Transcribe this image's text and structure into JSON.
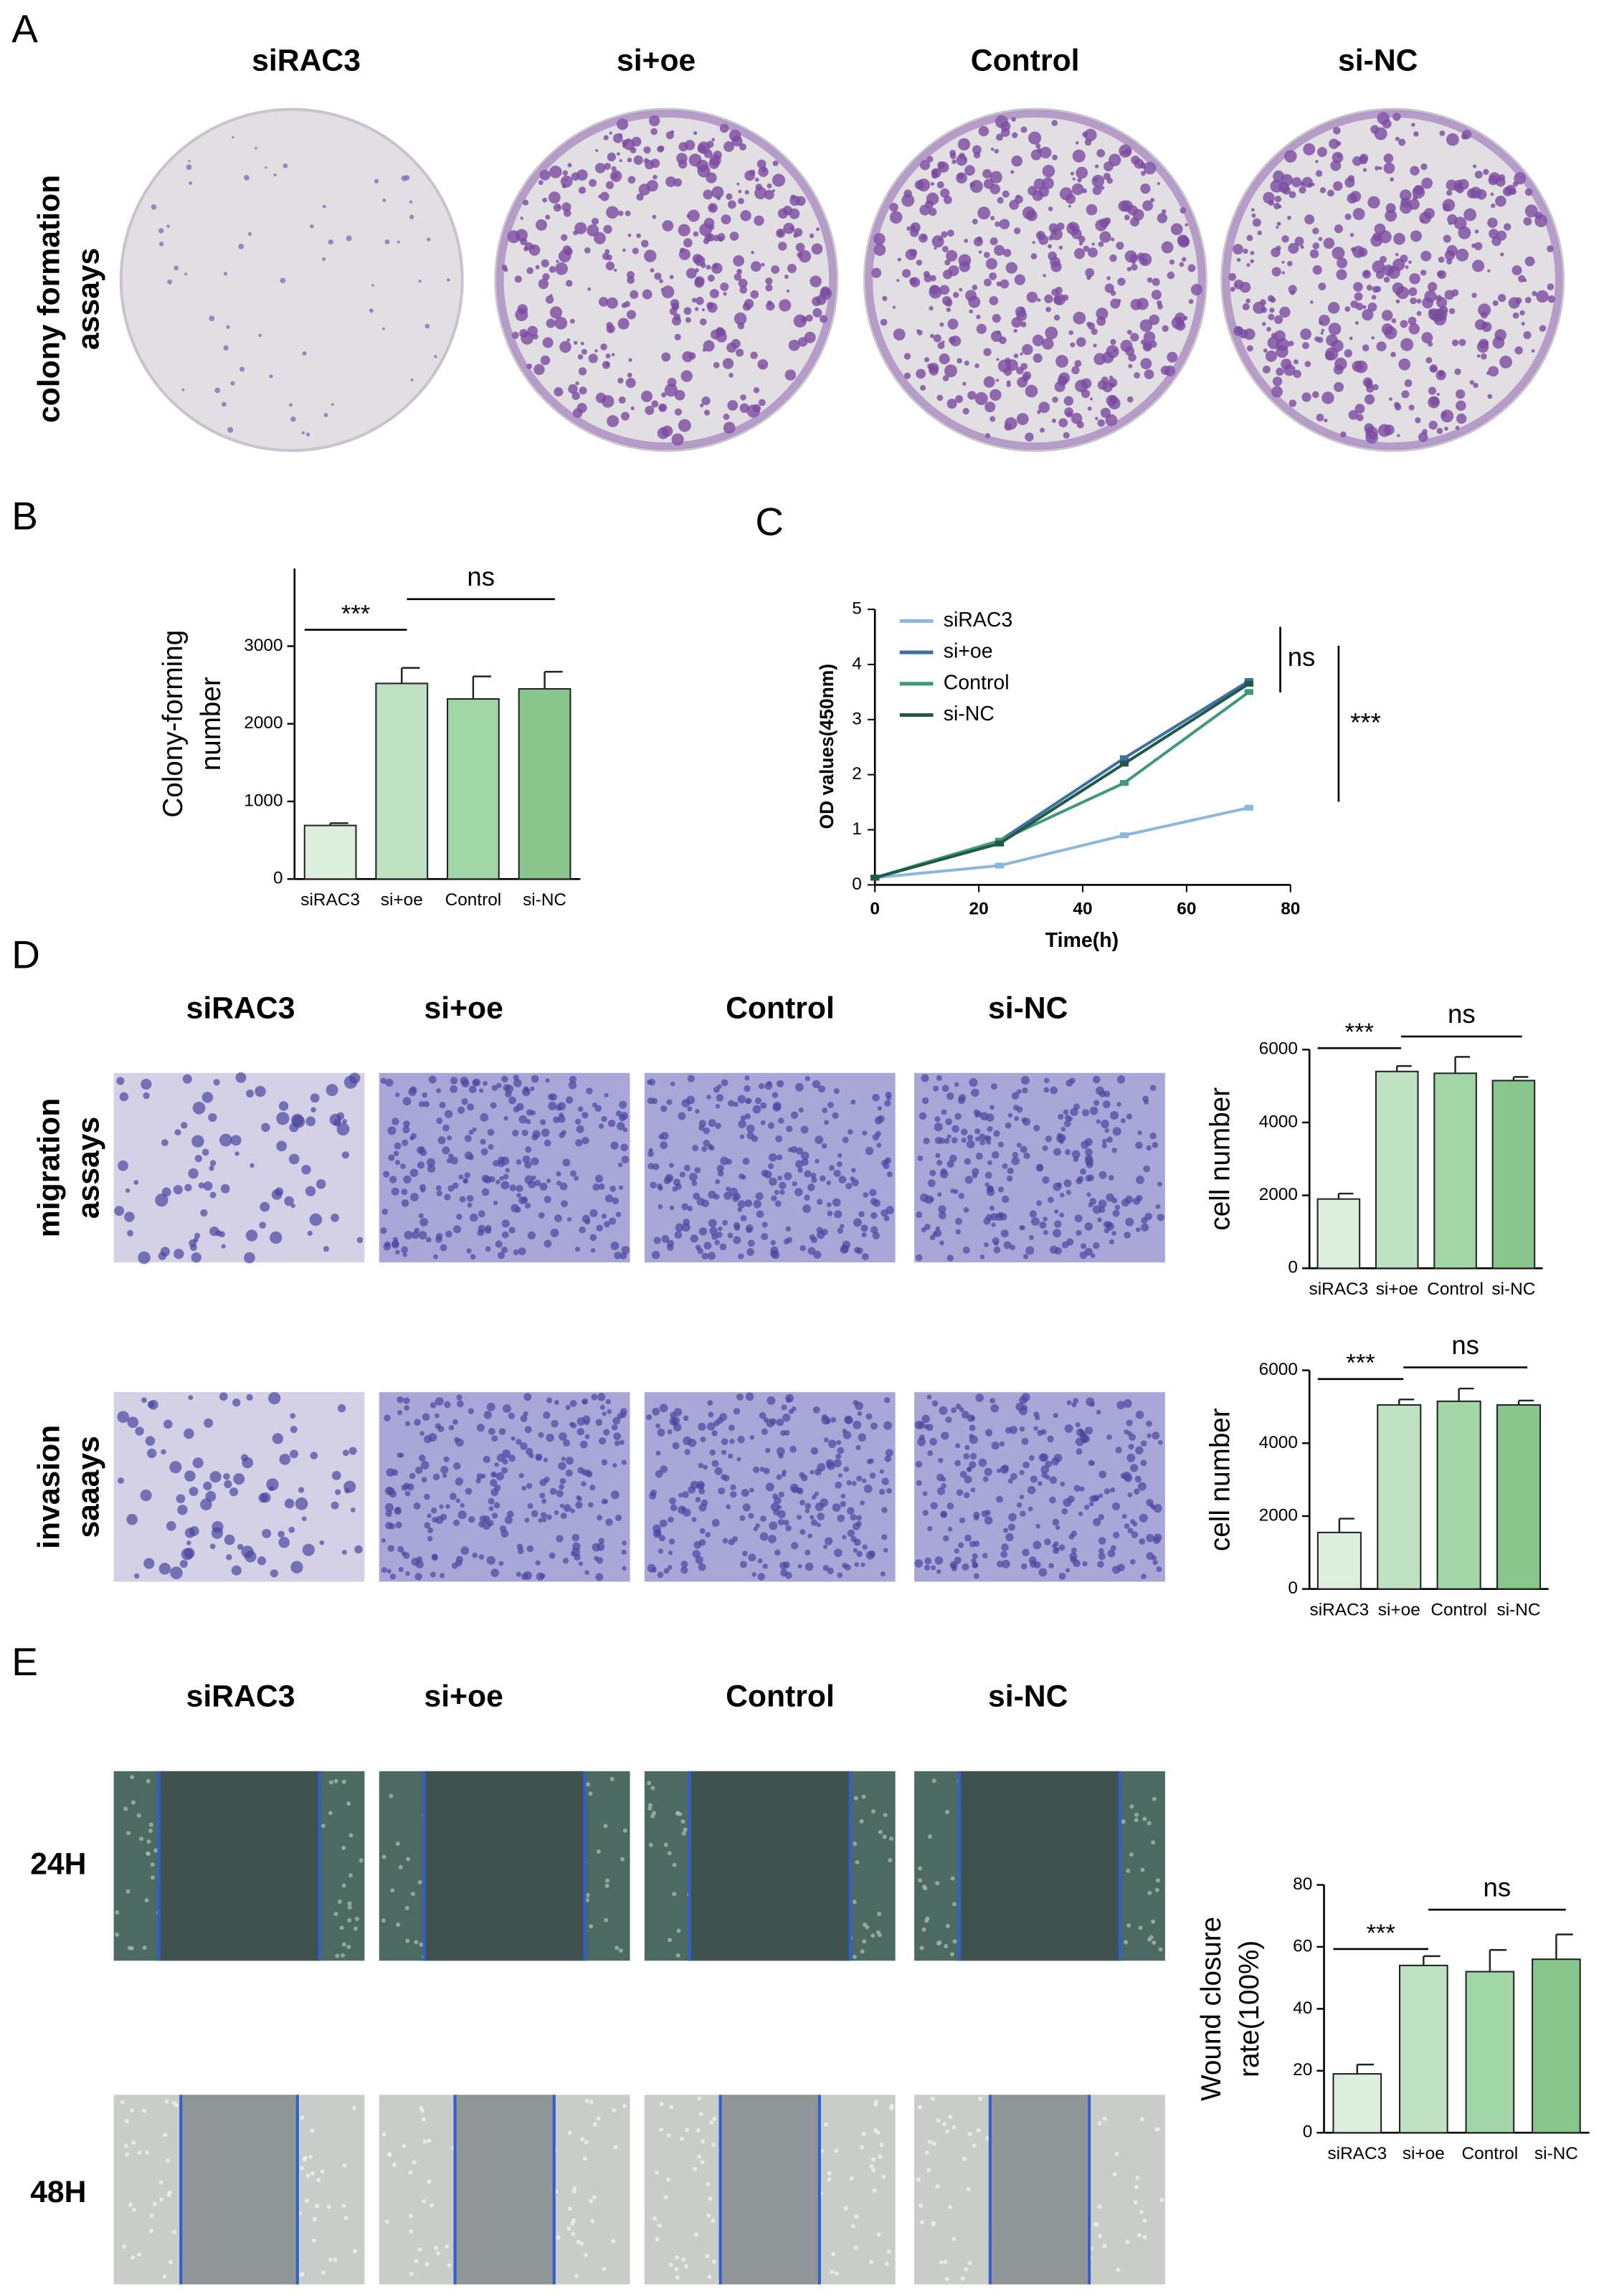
{
  "panels": {
    "letters": [
      "A",
      "B",
      "C",
      "D",
      "E"
    ],
    "a": {
      "columns": [
        "siRAC3",
        "si+oe",
        "Control",
        "si-NC"
      ],
      "row_label": [
        "colony formation",
        "assays"
      ]
    },
    "d": {
      "columns": [
        "siRAC3",
        "si+oe",
        "Control",
        "si-NC"
      ],
      "rows": [
        [
          "migration",
          "assays"
        ],
        [
          "invasion",
          "saaays"
        ]
      ]
    },
    "e": {
      "columns": [
        "siRAC3",
        "si+oe",
        "Control",
        "si-NC"
      ],
      "rows": [
        "24H",
        "48H"
      ]
    }
  },
  "chart_data": [
    {
      "type": "bar",
      "ylabel": [
        "Colony-forming",
        "number"
      ],
      "categories": [
        "siRAC3",
        "si+oe",
        "Control",
        "si-NC"
      ],
      "values": [
        690,
        2520,
        2320,
        2450
      ],
      "errors": [
        30,
        200,
        290,
        220
      ],
      "colors": [
        "#dcefdc",
        "#bfe3c2",
        "#a3d6a6",
        "#88c68c"
      ],
      "ylim": [
        0,
        4000
      ],
      "yticks": [
        0,
        1000,
        2000,
        3000
      ],
      "annotations": [
        "***",
        "ns"
      ]
    },
    {
      "type": "line",
      "ylabel": "OD values(450nm)",
      "xlabel": "Time(h)",
      "x": [
        0,
        24,
        48,
        72
      ],
      "series": [
        {
          "name": "siRAC3",
          "color": "#8ab8dc",
          "values": [
            0.13,
            0.35,
            0.9,
            1.4
          ]
        },
        {
          "name": "si+oe",
          "color": "#3d6fa5",
          "values": [
            0.13,
            0.8,
            2.3,
            3.7
          ]
        },
        {
          "name": "Control",
          "color": "#3f9a7a",
          "values": [
            0.13,
            0.8,
            1.85,
            3.5
          ]
        },
        {
          "name": "si-NC",
          "color": "#1f5a48",
          "values": [
            0.13,
            0.75,
            2.2,
            3.65
          ]
        }
      ],
      "xlim": [
        0,
        80
      ],
      "xticks": [
        0,
        20,
        40,
        60,
        80
      ],
      "ylim": [
        0,
        5
      ],
      "yticks": [
        0,
        1,
        2,
        3,
        4,
        5
      ],
      "annotations": [
        "ns",
        "***"
      ]
    },
    {
      "type": "bar",
      "ylabel": [
        "cell number"
      ],
      "categories": [
        "siRAC3",
        "si+oe",
        "Control",
        "si-NC"
      ],
      "values": [
        1900,
        5400,
        5350,
        5150
      ],
      "errors": [
        150,
        150,
        450,
        100
      ],
      "colors": [
        "#dcefdc",
        "#bfe3c2",
        "#a3d6a6",
        "#88c68c"
      ],
      "ylim": [
        0,
        6000
      ],
      "yticks": [
        0,
        2000,
        4000,
        6000
      ],
      "annotations": [
        "***",
        "ns"
      ]
    },
    {
      "type": "bar",
      "ylabel": [
        "cell number"
      ],
      "categories": [
        "siRAC3",
        "si+oe",
        "Control",
        "si-NC"
      ],
      "values": [
        1550,
        5050,
        5150,
        5050
      ],
      "errors": [
        380,
        150,
        350,
        120
      ],
      "colors": [
        "#dcefdc",
        "#bfe3c2",
        "#a3d6a6",
        "#88c68c"
      ],
      "ylim": [
        0,
        6000
      ],
      "yticks": [
        0,
        2000,
        4000,
        6000
      ],
      "annotations": [
        "***",
        "ns"
      ]
    },
    {
      "type": "bar",
      "ylabel": [
        "Wound closure",
        "rate(100%)"
      ],
      "categories": [
        "siRAC3",
        "si+oe",
        "Control",
        "si-NC"
      ],
      "values": [
        19,
        54,
        52,
        56
      ],
      "errors": [
        3,
        3,
        7,
        8
      ],
      "colors": [
        "#dcefdc",
        "#bfe3c2",
        "#a3d6a6",
        "#88c68c"
      ],
      "ylim": [
        0,
        80
      ],
      "yticks": [
        0,
        20,
        40,
        60,
        80
      ],
      "annotations": [
        "***",
        "ns"
      ]
    }
  ]
}
